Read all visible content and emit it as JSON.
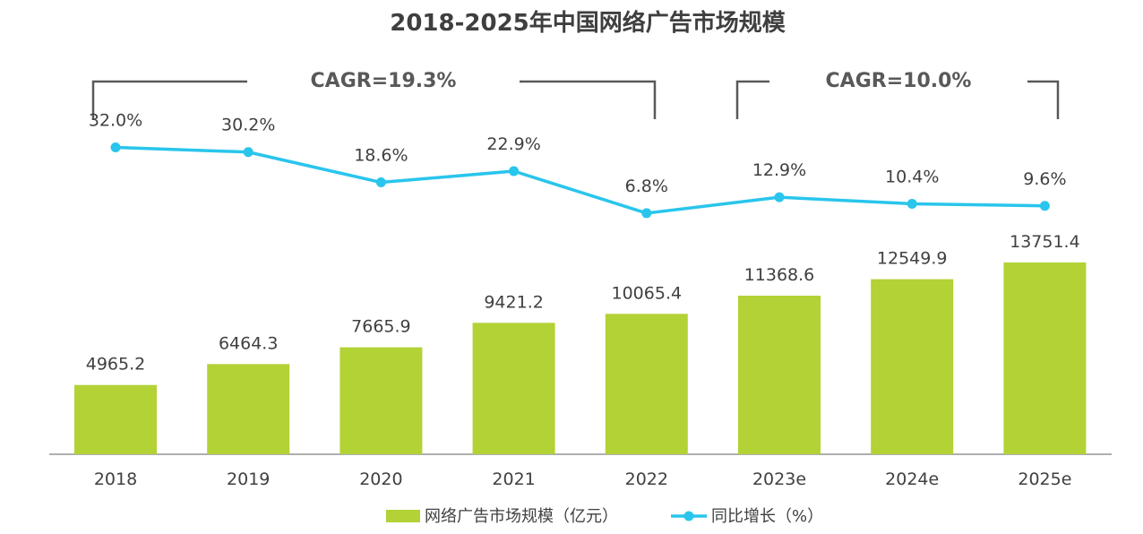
{
  "chart_data": {
    "type": "bar+line",
    "title": "2018-2025年中国网络广告市场规模",
    "categories": [
      "2018",
      "2019",
      "2020",
      "2021",
      "2022",
      "2023e",
      "2024e",
      "2025e"
    ],
    "series": [
      {
        "name": "网络广告市场规模（亿元）",
        "kind": "bar",
        "color": "#b2d235",
        "values": [
          4965.2,
          6464.3,
          7665.9,
          9421.2,
          10065.4,
          11368.6,
          12549.9,
          13751.4
        ],
        "labels": [
          "4965.2",
          "6464.3",
          "7665.9",
          "9421.2",
          "10065.4",
          "11368.6",
          "12549.9",
          "13751.4"
        ]
      },
      {
        "name": "同比增长（%）",
        "kind": "line",
        "color": "#29c5ec",
        "values": [
          32.0,
          30.2,
          18.6,
          22.9,
          6.8,
          12.9,
          10.4,
          9.6
        ],
        "labels": [
          "32.0%",
          "30.2%",
          "18.6%",
          "22.9%",
          "6.8%",
          "12.9%",
          "10.4%",
          "9.6%"
        ]
      }
    ],
    "annotations": [
      {
        "text": "CAGR=19.3%",
        "from": "2018",
        "to": "2022"
      },
      {
        "text": "CAGR=10.0%",
        "from": "2023e",
        "to": "2025e"
      }
    ],
    "legend": "bottom-center"
  }
}
